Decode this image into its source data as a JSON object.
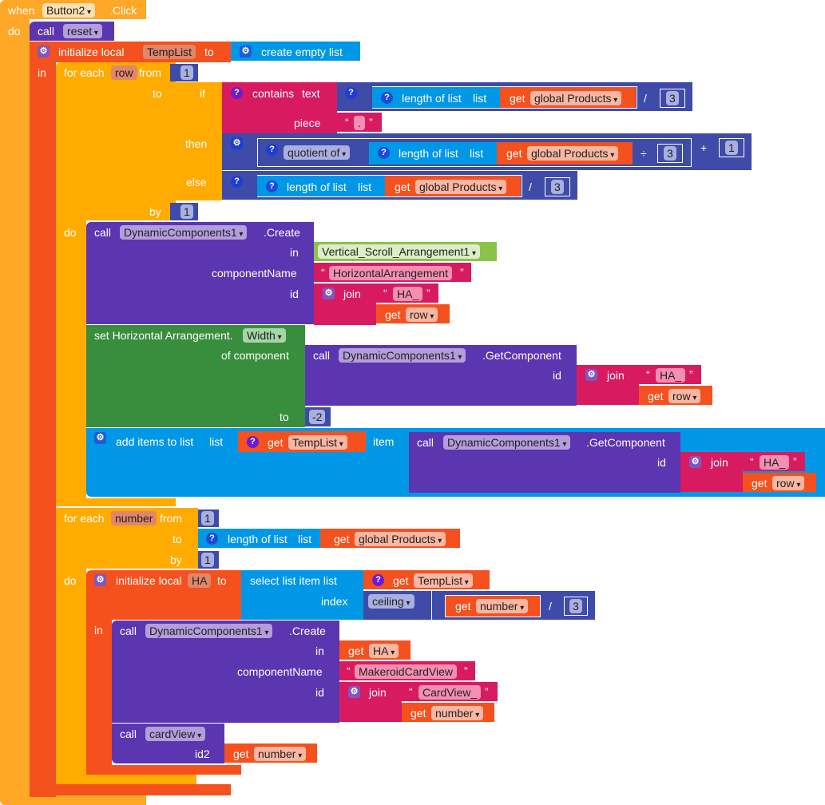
{
  "colors": {
    "event": "#ffa726",
    "procedure": "#5c35b0",
    "variable": "#f4511e",
    "list": "#0097e6",
    "control": "#ffab00",
    "text": "#d81b60",
    "math": "#3f4ba8",
    "setter": "#388e3c",
    "component": "#8bc34a"
  },
  "event": {
    "when": "when",
    "component": "Button2",
    "event_name": ".Click",
    "do": "do"
  },
  "call_reset": {
    "call": "call",
    "proc": "reset"
  },
  "init_templist": {
    "label": "initialize local",
    "var": "TempList",
    "to": "to",
    "value": "create empty list",
    "in": "in"
  },
  "loop_row": {
    "for_each": "for each",
    "var": "row",
    "from": "from",
    "from_value": "1",
    "to": "to",
    "by": "by",
    "by_value": "1",
    "do": "do",
    "if_block": {
      "if": "if",
      "contains": "contains",
      "text": "text",
      "piece": "piece",
      "piece_value": ".",
      "then": "then",
      "else": "else",
      "length_of_list": "length of list",
      "list": "list",
      "get": "get",
      "global_products": "global Products",
      "divide": "/",
      "divisor": "3",
      "quotient_of": "quotient of",
      "div_sign": "÷",
      "plus": "+",
      "plus_value": "1"
    },
    "create1": {
      "call": "call",
      "component": "DynamicComponents1",
      "method": ".Create",
      "in": "in",
      "in_value": "Vertical_Scroll_Arrangement1",
      "componentName": "componentName",
      "componentName_value": "HorizontalArrangement",
      "id": "id",
      "join": "join",
      "prefix": "HA_",
      "get": "get",
      "var": "row"
    },
    "setter": {
      "label": "set Horizontal Arrangement.",
      "property": "Width",
      "of_component": "of component",
      "call": "call",
      "component": "DynamicComponents1",
      "method": ".GetComponent",
      "id": "id",
      "join": "join",
      "prefix": "HA_",
      "get": "get",
      "var": "row",
      "to": "to",
      "to_value": "-2"
    },
    "add_items": {
      "label": "add items to list",
      "list": "list",
      "get": "get",
      "list_var": "TempList",
      "item": "item",
      "call": "call",
      "component": "DynamicComponents1",
      "method": ".GetComponent",
      "id": "id",
      "join": "join",
      "prefix": "HA_",
      "var": "row"
    }
  },
  "loop_number": {
    "for_each": "for each",
    "var": "number",
    "from": "from",
    "from_value": "1",
    "to": "to",
    "length_of_list": "length of list",
    "list": "list",
    "get": "get",
    "global_products": "global Products",
    "by": "by",
    "by_value": "1",
    "do": "do",
    "init_ha": {
      "label": "initialize local",
      "var": "HA",
      "to": "to",
      "select": "select list item  list",
      "get": "get",
      "list_var": "TempList",
      "index": "index",
      "ceiling": "ceiling",
      "num_var": "number",
      "divide": "/",
      "divisor": "3",
      "in": "in"
    },
    "create2": {
      "call": "call",
      "component": "DynamicComponents1",
      "method": ".Create",
      "in": "in",
      "get": "get",
      "in_var": "HA",
      "componentName": "componentName",
      "componentName_value": "MakeroidCardView",
      "id": "id",
      "join": "join",
      "prefix": "CardView_",
      "var": "number"
    },
    "call_cardview": {
      "call": "call",
      "proc": "cardView",
      "id2": "id2",
      "get": "get",
      "var": "number"
    }
  }
}
